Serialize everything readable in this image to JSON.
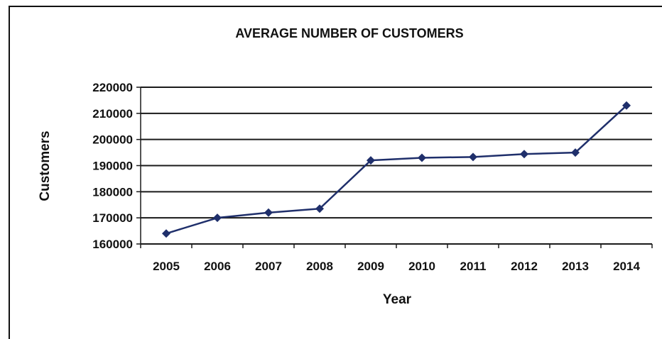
{
  "chart_data": {
    "type": "line",
    "title": "AVERAGE  NUMBER OF CUSTOMERS",
    "xlabel": "Year",
    "ylabel": "Customers",
    "categories": [
      "2005",
      "2006",
      "2007",
      "2008",
      "2009",
      "2010",
      "2011",
      "2012",
      "2013",
      "2014"
    ],
    "series": [
      {
        "values": [
          164000,
          170000,
          172000,
          173500,
          192000,
          193000,
          193300,
          194400,
          195000,
          213000
        ],
        "color": "#1f2f6b",
        "marker": "diamond"
      }
    ],
    "ylim": [
      160000,
      220000
    ],
    "yticks": [
      "160000",
      "170000",
      "180000",
      "190000",
      "200000",
      "210000",
      "220000"
    ],
    "grid": true,
    "legend": "none"
  }
}
